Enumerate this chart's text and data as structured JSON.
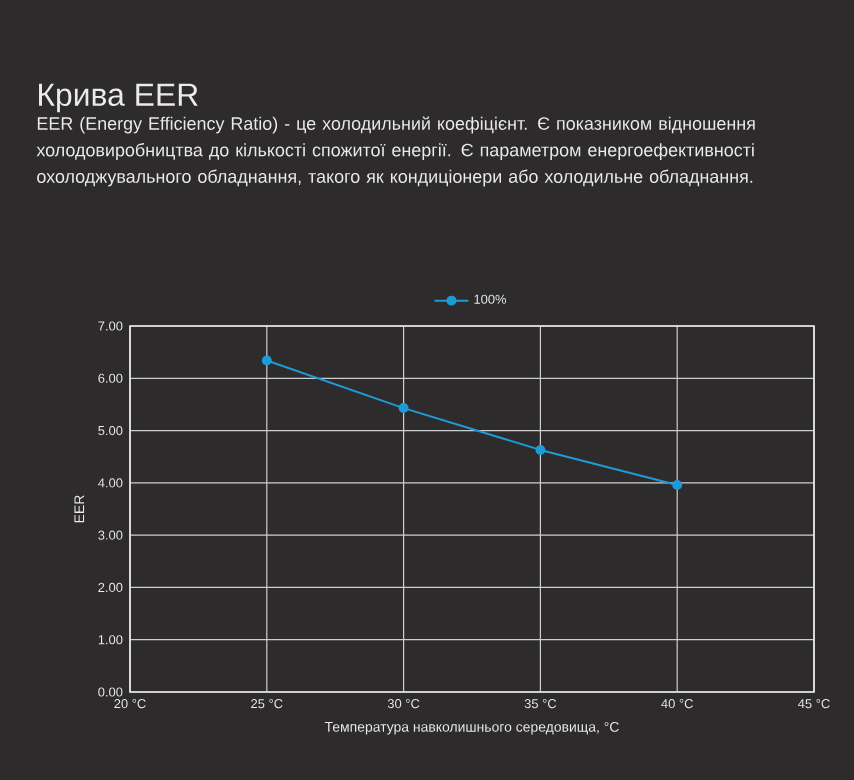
{
  "chart_data": {
    "type": "line",
    "title": "Крива EER",
    "subtitle": "EER (Energy Efficiency Ratio) - це холодильний коефіцієнт. Є показником відношення холодовиробництва до кількості спожитої енергії. Є параметром енергоефективності охолоджувального обладнання, такого як кондиціонери або холодильне обладнання.",
    "xlabel": "Температура навколишнього середовища, °C",
    "ylabel": "EER",
    "x": [
      25,
      30,
      35,
      40
    ],
    "series": [
      {
        "name": "100%",
        "color": "#1e9bd7",
        "values": [
          6.34,
          5.43,
          4.63,
          3.96
        ]
      }
    ],
    "xlim": [
      20,
      45
    ],
    "xticks": [
      {
        "value": 20,
        "label": "20 °C"
      },
      {
        "value": 25,
        "label": "25 °C"
      },
      {
        "value": 30,
        "label": "30 °C"
      },
      {
        "value": 35,
        "label": "35 °C"
      },
      {
        "value": 40,
        "label": "40 °C"
      },
      {
        "value": 45,
        "label": "45 °C"
      }
    ],
    "ylim": [
      0,
      7
    ],
    "yticks": [
      {
        "value": 0,
        "label": "0.00"
      },
      {
        "value": 1,
        "label": "1.00"
      },
      {
        "value": 2,
        "label": "2.00"
      },
      {
        "value": 3,
        "label": "3.00"
      },
      {
        "value": 4,
        "label": "4.00"
      },
      {
        "value": 5,
        "label": "5.00"
      },
      {
        "value": 6,
        "label": "6.00"
      },
      {
        "value": 7,
        "label": "7.00"
      }
    ],
    "grid": true,
    "legend": "top",
    "marker": "circle"
  }
}
